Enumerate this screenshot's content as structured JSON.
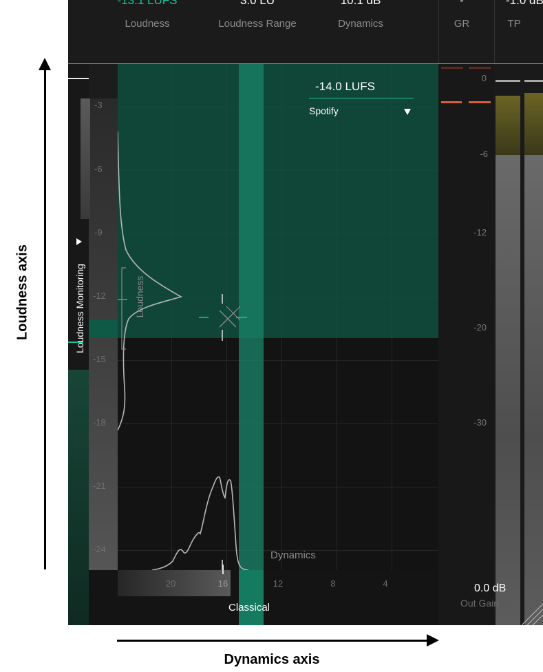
{
  "header": {
    "metrics": [
      {
        "value": "-13.1 LUFS",
        "label": "Loudness",
        "color": "#1fc39a"
      },
      {
        "value": "3.0 LU",
        "label": "Loudness Range",
        "color": "#ffffff"
      },
      {
        "value": "10.1 dB",
        "label": "Dynamics",
        "color": "#ffffff"
      },
      {
        "value": "-",
        "label": "GR",
        "color": "#ffffff"
      },
      {
        "value": "-1.0 dB",
        "label": "TP",
        "color": "#ffffff"
      }
    ]
  },
  "target": {
    "value": "-14.0 LUFS",
    "preset": "Spotify",
    "dropdown_icon": "triangle-down-icon",
    "accent": "#1fc39a"
  },
  "monitoring": {
    "label": "Loudness Monitoring",
    "toggle_icon": "triangle-right-icon"
  },
  "plot": {
    "y_ticks": [
      "-3",
      "-6",
      "-9",
      "-12",
      "-15",
      "-18",
      "-21",
      "-24"
    ],
    "x_ticks": [
      "20",
      "16",
      "12",
      "8",
      "4"
    ],
    "loudness_label": "Loudness",
    "dynamics_label": "Dynamics",
    "genre_label": "Classical",
    "zone_color": "#0e5a47"
  },
  "meter": {
    "scale": [
      "0",
      "-6",
      "-12",
      "-20",
      "-30"
    ],
    "out_gain_value": "0.0 dB",
    "out_gain_label": "Out Gain",
    "clip_color": "#d9603c"
  },
  "annotations": {
    "y_axis": "Loudness axis",
    "x_axis": "Dynamics axis"
  }
}
